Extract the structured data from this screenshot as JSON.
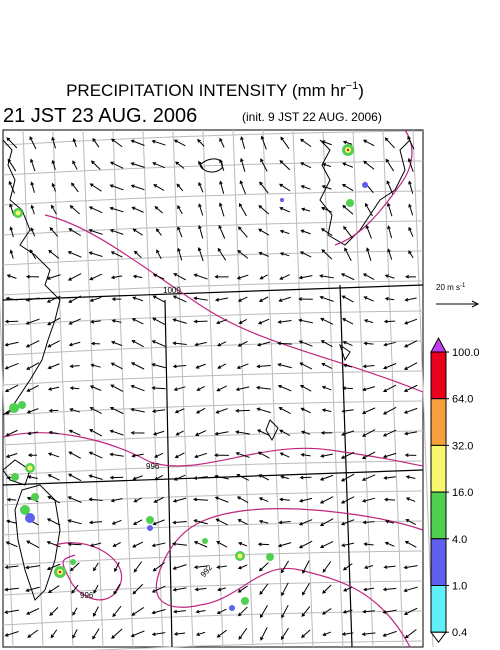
{
  "header": {
    "title": "PRECIPITATION INTENSITY (mm hr",
    "title_exponent": "−1",
    "title_close": ")",
    "date": "21 JST 23 AUG. 2006",
    "init": "(init. 9 JST 22 AUG. 2006)"
  },
  "wind_scale": {
    "label": "20 m s",
    "exponent": "-1"
  },
  "colorbar": {
    "ticks": [
      {
        "value": 100,
        "label": "100.0"
      },
      {
        "value": 64,
        "label": "64.0"
      },
      {
        "value": 32,
        "label": "32.0"
      },
      {
        "value": 16,
        "label": "16.0"
      },
      {
        "value": 4,
        "label": "4.0"
      },
      {
        "value": 1,
        "label": "1.0"
      },
      {
        "value": 0.4,
        "label": "0.4"
      }
    ],
    "colors": [
      "#e8001c",
      "#f7a040",
      "#f8f870",
      "#50d050",
      "#6060f0",
      "#60f0f8"
    ],
    "over_color": "#c040f0"
  },
  "contour_labels": [
    "1000",
    "996",
    "992",
    "996"
  ]
}
